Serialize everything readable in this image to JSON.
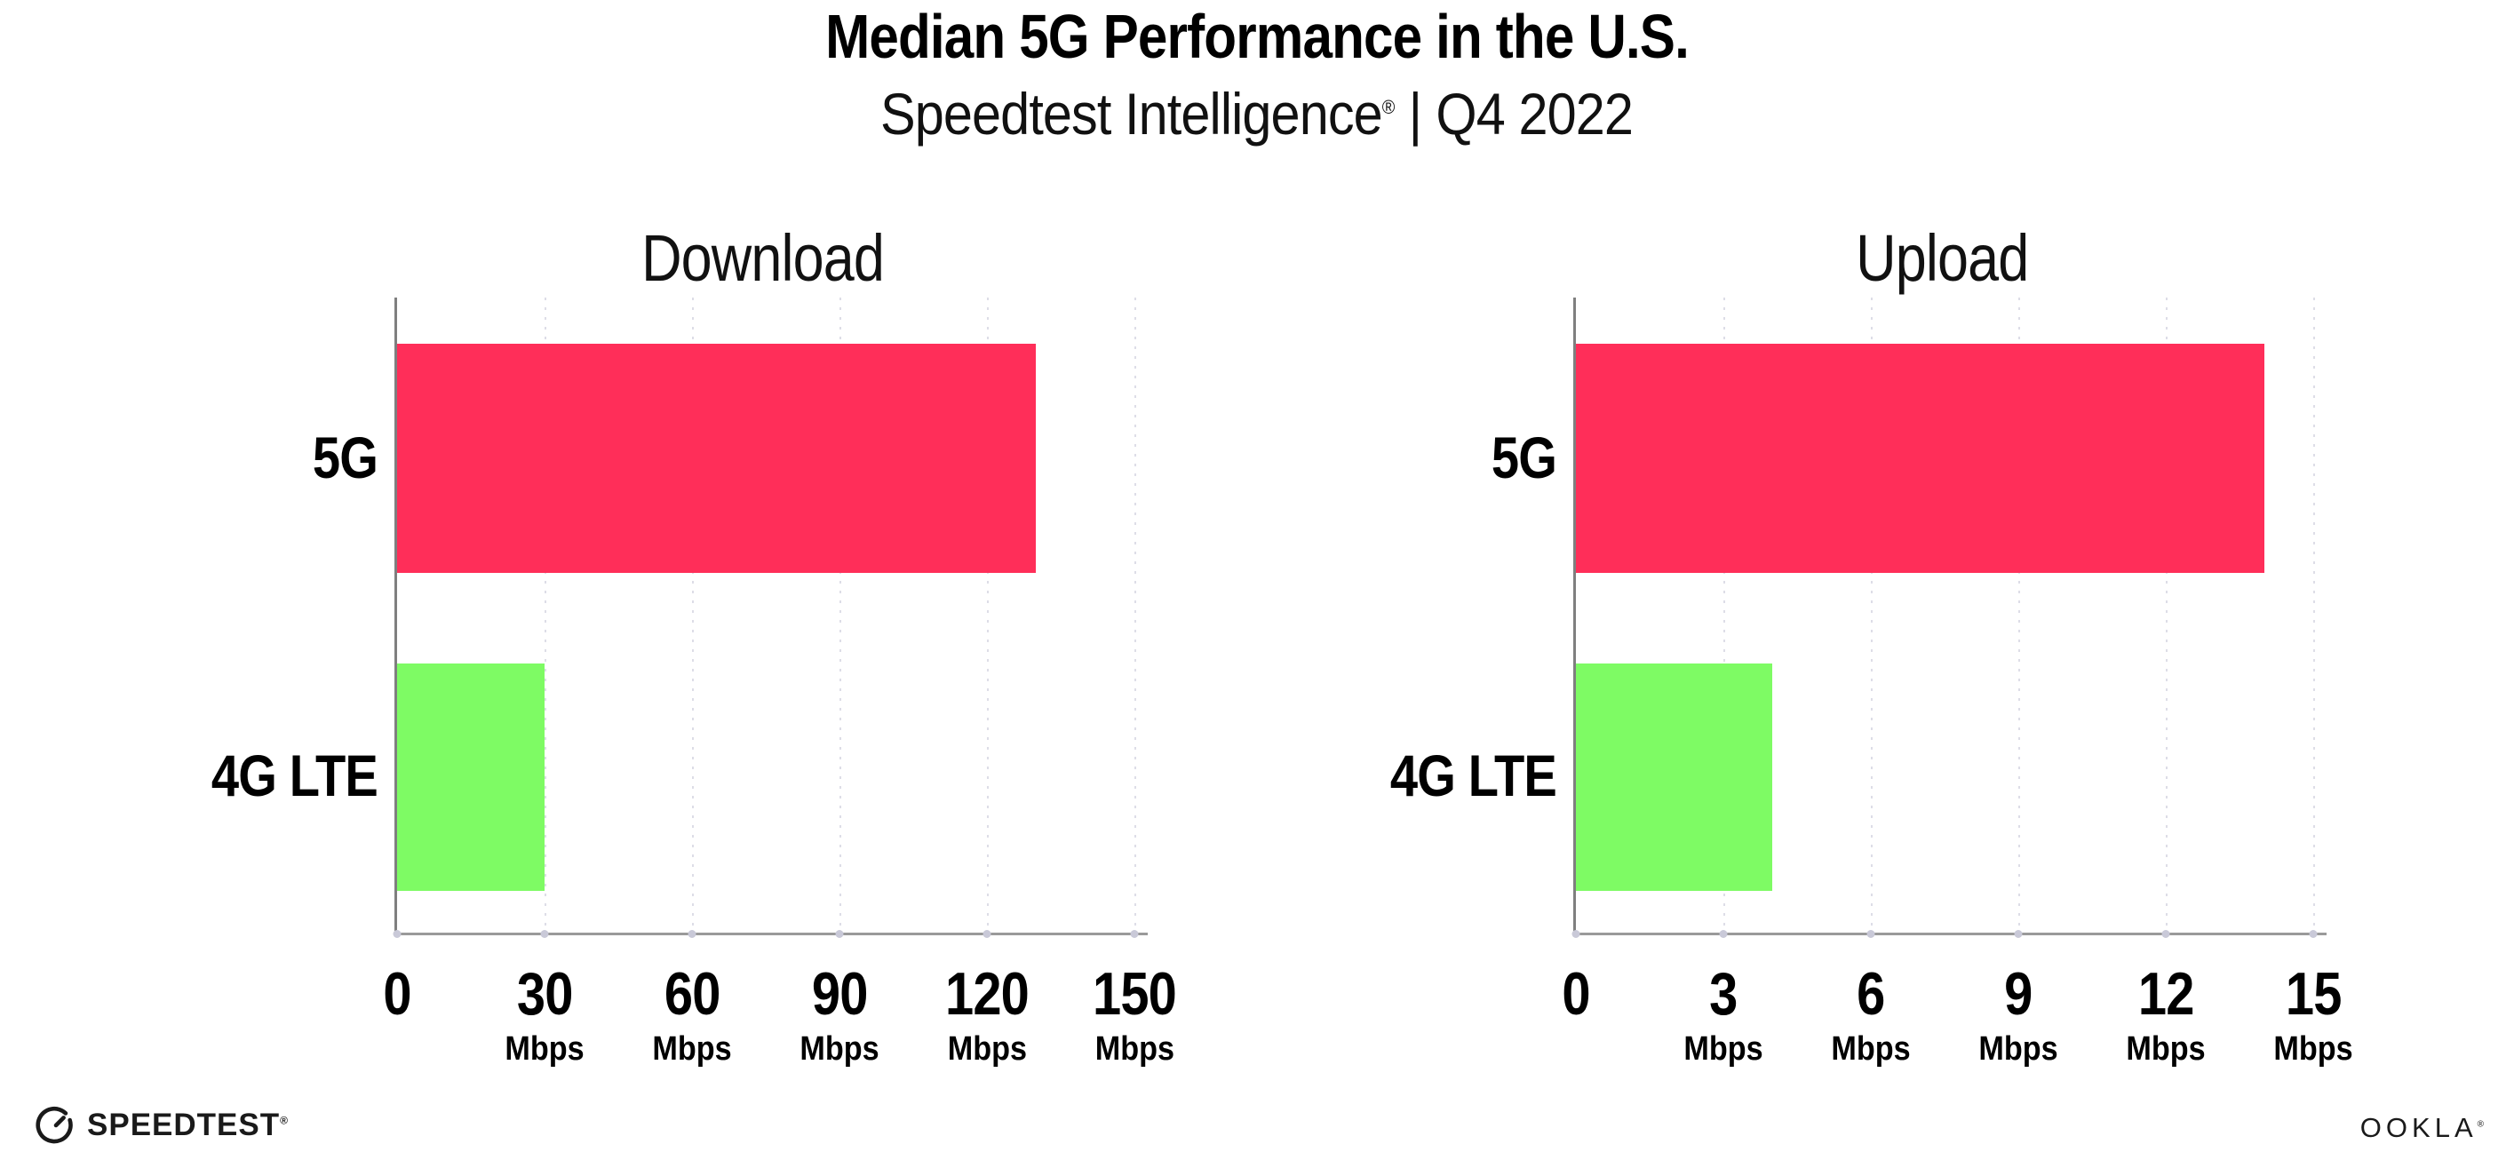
{
  "header": {
    "title": "Median 5G Performance in the U.S.",
    "subtitle": {
      "brand": "Speedtest Intelligence",
      "reg": "®",
      "divider": "|",
      "period": "Q4 2022"
    }
  },
  "chart_data": [
    {
      "type": "bar",
      "orientation": "horizontal",
      "title": "Download",
      "categories": [
        "5G",
        "4G LTE"
      ],
      "values": [
        130,
        30
      ],
      "unit": "Mbps",
      "xlim": [
        0,
        150
      ],
      "ticks": [
        0,
        30,
        60,
        90,
        120,
        150
      ],
      "bar_colors": [
        "#FF2E59",
        "#7EFB64"
      ],
      "grid": "dotted-vertical",
      "legend": "none"
    },
    {
      "type": "bar",
      "orientation": "horizontal",
      "title": "Upload",
      "categories": [
        "5G",
        "4G LTE"
      ],
      "values": [
        14,
        4
      ],
      "unit": "Mbps",
      "xlim": [
        0,
        15
      ],
      "ticks": [
        0,
        3,
        6,
        9,
        12,
        15
      ],
      "bar_colors": [
        "#FF2E59",
        "#7EFB64"
      ],
      "grid": "dotted-vertical",
      "legend": "none"
    }
  ],
  "footer": {
    "speedtest_wordmark": "SPEEDTEST",
    "speedtest_reg": "®",
    "ookla_wordmark": "OOKLA",
    "ookla_reg": "®"
  },
  "colors": {
    "bar_5g": "#FF2E59",
    "bar_4g_lte": "#7EFB64",
    "grid": "#DDDDE7",
    "axis_y": "#7F7F7F",
    "axis_x": "#9A9A9A",
    "axis_dot": "#C9C9D8",
    "text": "#000000"
  }
}
